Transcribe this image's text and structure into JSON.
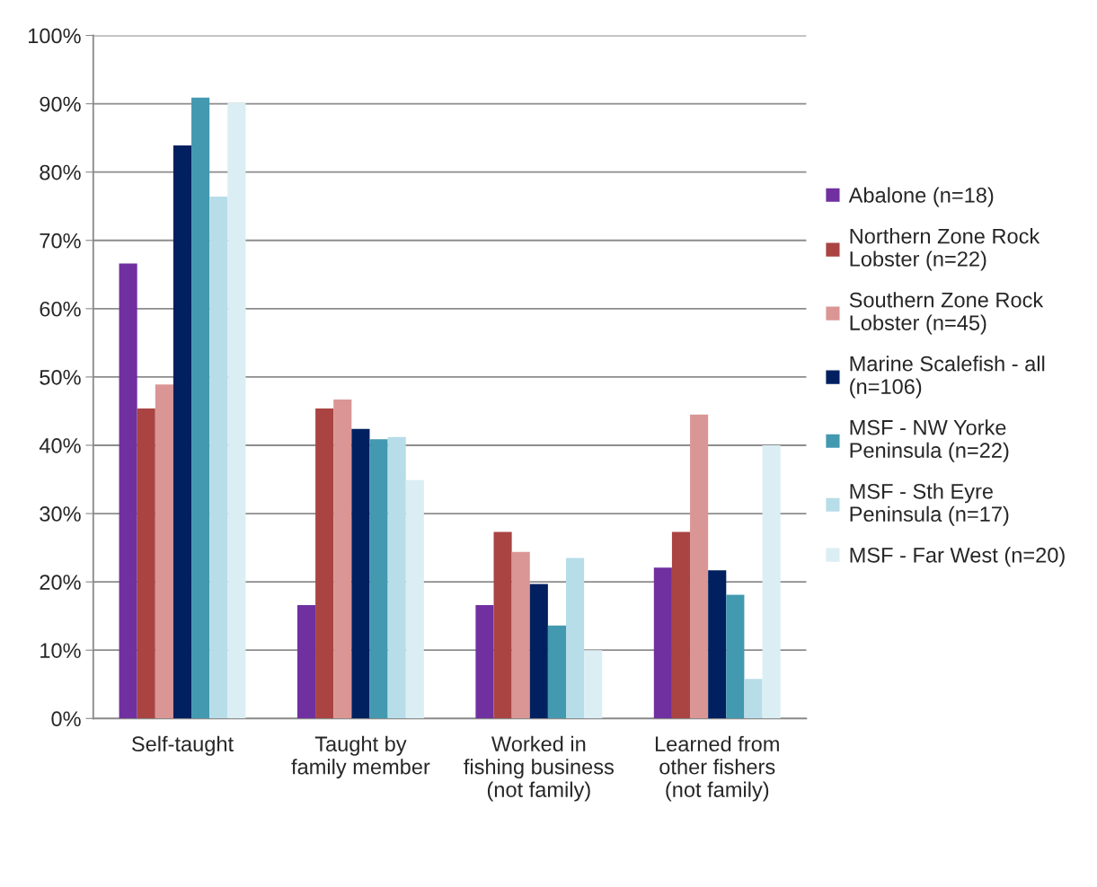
{
  "chart_data": {
    "type": "bar",
    "categories": [
      "Self-taught",
      "Taught by\nfamily member",
      "Worked in\nfishing business\n(not family)",
      "Learned from\nother fishers\n(not family)"
    ],
    "series": [
      {
        "name": "Abalone (n=18)",
        "color": "#7030a0",
        "values": [
          66.6,
          16.6,
          16.6,
          22.1
        ]
      },
      {
        "name": "Northern Zone Rock\nLobster (n=22)",
        "color": "#a94442",
        "values": [
          45.4,
          45.4,
          27.3,
          27.3
        ]
      },
      {
        "name": "Southern Zone Rock\nLobster (n=45)",
        "color": "#da9694",
        "values": [
          48.9,
          46.7,
          24.4,
          44.5
        ]
      },
      {
        "name": "Marine Scalefish - all\n(n=106)",
        "color": "#002060",
        "values": [
          83.9,
          42.4,
          19.7,
          21.7
        ]
      },
      {
        "name": "MSF - NW Yorke\nPeninsula (n=22)",
        "color": "#4299b0",
        "values": [
          90.9,
          40.9,
          13.6,
          18.1
        ]
      },
      {
        "name": "MSF - Sth Eyre\nPeninsula (n=17)",
        "color": "#b7dde8",
        "values": [
          76.4,
          41.2,
          23.5,
          5.8
        ]
      },
      {
        "name": "MSF - Far West (n=20)",
        "color": "#dbeef4",
        "values": [
          90.1,
          34.9,
          10.0,
          40.0
        ]
      }
    ],
    "ylim": [
      0,
      100
    ],
    "yticks": [
      {
        "value": 0,
        "label": "0%"
      },
      {
        "value": 10,
        "label": "10%"
      },
      {
        "value": 20,
        "label": "20%"
      },
      {
        "value": 30,
        "label": "30%"
      },
      {
        "value": 40,
        "label": "40%"
      },
      {
        "value": 50,
        "label": "50%"
      },
      {
        "value": 60,
        "label": "60%"
      },
      {
        "value": 70,
        "label": "70%"
      },
      {
        "value": 80,
        "label": "80%"
      },
      {
        "value": 90,
        "label": "90%"
      },
      {
        "value": 100,
        "label": "100%"
      }
    ],
    "grid": "y",
    "legend": "right"
  }
}
